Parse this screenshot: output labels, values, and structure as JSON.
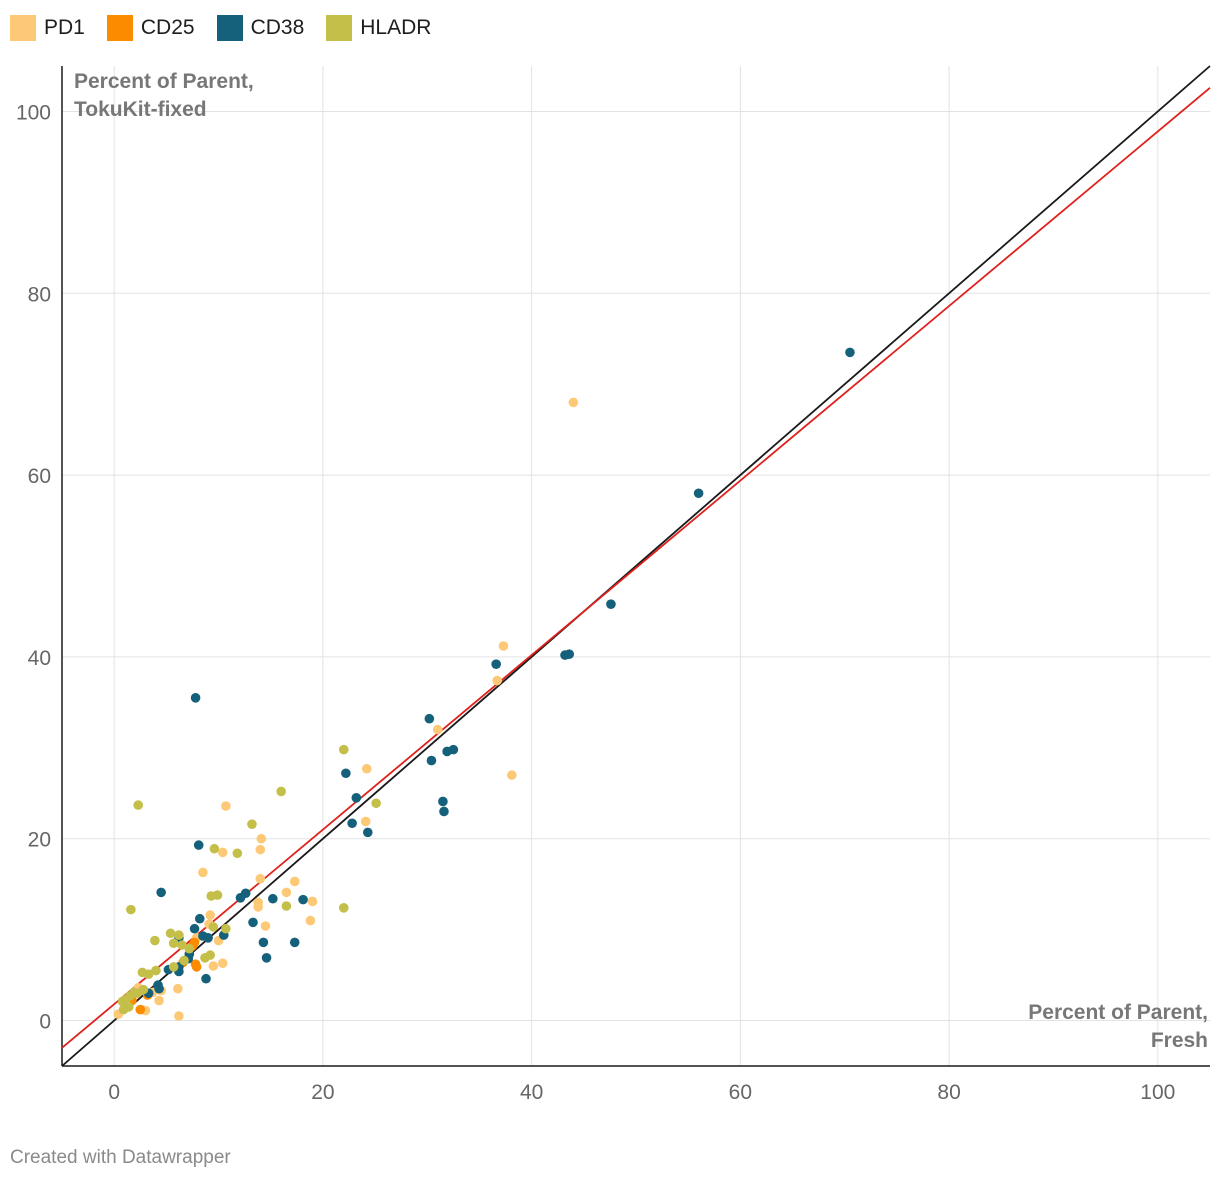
{
  "chart_data": {
    "type": "scatter",
    "title": "",
    "xlabel": "Percent of Parent, Fresh",
    "xlabel_lines": [
      "Percent of Parent,",
      "Fresh"
    ],
    "ylabel": "Percent of Parent, TokuKit-fixed",
    "ylabel_lines": [
      "Percent of Parent,",
      "TokuKit-fixed"
    ],
    "xlim": [
      -5,
      105
    ],
    "ylim": [
      -5,
      105
    ],
    "xticks": [
      0,
      20,
      40,
      60,
      80,
      100
    ],
    "yticks": [
      0,
      20,
      40,
      60,
      80,
      100
    ],
    "grid": true,
    "legend_position": "top-left",
    "reference_lines": [
      {
        "name": "identity",
        "color": "#1a1a1a",
        "slope": 1.0,
        "intercept": 0.0
      },
      {
        "name": "fit",
        "color": "#e0201b",
        "slope": 0.96,
        "intercept": 1.8
      }
    ],
    "series": [
      {
        "name": "PD1",
        "color": "#fdc976",
        "points": [
          [
            44,
            68
          ],
          [
            37.3,
            41.2
          ],
          [
            36.7,
            37.4
          ],
          [
            38.1,
            27
          ],
          [
            31,
            32
          ],
          [
            24.2,
            27.7
          ],
          [
            24.1,
            21.9
          ],
          [
            10.7,
            23.6
          ],
          [
            14.1,
            20
          ],
          [
            14,
            18.8
          ],
          [
            10.4,
            18.5
          ],
          [
            8.5,
            16.3
          ],
          [
            14,
            15.6
          ],
          [
            17.3,
            15.3
          ],
          [
            16.5,
            14.1
          ],
          [
            13.8,
            13
          ],
          [
            13.8,
            12.5
          ],
          [
            19,
            13.1
          ],
          [
            18.8,
            11
          ],
          [
            14.5,
            10.4
          ],
          [
            9.2,
            11.6
          ],
          [
            9.1,
            10.6
          ],
          [
            10,
            8.8
          ],
          [
            10.4,
            6.3
          ],
          [
            9.5,
            6
          ],
          [
            6.1,
            3.5
          ],
          [
            6.2,
            0.5
          ],
          [
            4.3,
            2.2
          ],
          [
            2.6,
            1.2
          ],
          [
            3,
            1.1
          ],
          [
            0.4,
            0.7
          ],
          [
            2.3,
            3.6
          ],
          [
            3.7,
            3.1
          ],
          [
            4.5,
            3.3
          ],
          [
            1.7,
            2.3
          ],
          [
            7.9,
            9.1
          ]
        ]
      },
      {
        "name": "CD25",
        "color": "#fd8b00",
        "points": [
          [
            7.5,
            8.2
          ],
          [
            7.7,
            8.6
          ],
          [
            7.8,
            6.2
          ],
          [
            2.5,
            1.2
          ],
          [
            3.2,
            2.8
          ],
          [
            1.7,
            2.2
          ],
          [
            7.9,
            5.9
          ],
          [
            6.6,
            6.4
          ]
        ]
      },
      {
        "name": "CD38",
        "color": "#15607a",
        "points": [
          [
            70.5,
            73.5
          ],
          [
            56,
            58
          ],
          [
            47.6,
            45.8
          ],
          [
            43.6,
            40.3
          ],
          [
            43.2,
            40.2
          ],
          [
            36.6,
            39.2
          ],
          [
            30.2,
            33.2
          ],
          [
            32.5,
            29.8
          ],
          [
            31.9,
            29.6
          ],
          [
            30.4,
            28.6
          ],
          [
            22.2,
            27.2
          ],
          [
            23.2,
            24.5
          ],
          [
            31.5,
            24.1
          ],
          [
            31.6,
            23
          ],
          [
            22.8,
            21.7
          ],
          [
            24.3,
            20.7
          ],
          [
            7.8,
            35.5
          ],
          [
            8.1,
            19.3
          ],
          [
            4.5,
            14.1
          ],
          [
            12.6,
            14
          ],
          [
            12.1,
            13.5
          ],
          [
            15.2,
            13.4
          ],
          [
            18.1,
            13.3
          ],
          [
            8.2,
            11.2
          ],
          [
            7.7,
            10.1
          ],
          [
            13.3,
            10.8
          ],
          [
            10.5,
            9.4
          ],
          [
            8.5,
            9.3
          ],
          [
            6.2,
            9.1
          ],
          [
            14.3,
            8.6
          ],
          [
            17.3,
            8.6
          ],
          [
            7.2,
            7.3
          ],
          [
            14.6,
            6.9
          ],
          [
            6.2,
            5.9
          ],
          [
            6.2,
            5.4
          ],
          [
            5.2,
            5.6
          ],
          [
            8.8,
            4.6
          ],
          [
            4.2,
            3.9
          ],
          [
            4.3,
            3.5
          ],
          [
            3.3,
            3
          ],
          [
            7.1,
            6.8
          ],
          [
            9,
            9.1
          ]
        ]
      },
      {
        "name": "HLADR",
        "color": "#c4bf49",
        "points": [
          [
            22,
            29.8
          ],
          [
            25.1,
            23.9
          ],
          [
            16,
            25.2
          ],
          [
            22,
            12.4
          ],
          [
            16.5,
            12.6
          ],
          [
            2.3,
            23.7
          ],
          [
            13.2,
            21.6
          ],
          [
            9.6,
            18.9
          ],
          [
            11.8,
            18.4
          ],
          [
            9.3,
            13.7
          ],
          [
            9.9,
            13.8
          ],
          [
            1.6,
            12.2
          ],
          [
            9.5,
            10.3
          ],
          [
            10.7,
            10.1
          ],
          [
            5.4,
            9.6
          ],
          [
            6.2,
            9.4
          ],
          [
            3.9,
            8.8
          ],
          [
            5.7,
            8.5
          ],
          [
            6.5,
            8.3
          ],
          [
            7.2,
            7.9
          ],
          [
            8.7,
            6.9
          ],
          [
            9.2,
            7.2
          ],
          [
            6.7,
            6.6
          ],
          [
            4,
            5.5
          ],
          [
            2.7,
            5.3
          ],
          [
            3.3,
            5.1
          ],
          [
            1.9,
            3.1
          ],
          [
            2.2,
            3
          ],
          [
            1.5,
            2.7
          ],
          [
            1.1,
            2.3
          ],
          [
            0.8,
            2.1
          ],
          [
            1.1,
            1.8
          ],
          [
            1.4,
            1.5
          ],
          [
            2.8,
            3.4
          ],
          [
            5.7,
            5.9
          ],
          [
            0.9,
            1.2
          ]
        ]
      }
    ]
  },
  "footer": {
    "credit": "Created with Datawrapper"
  }
}
